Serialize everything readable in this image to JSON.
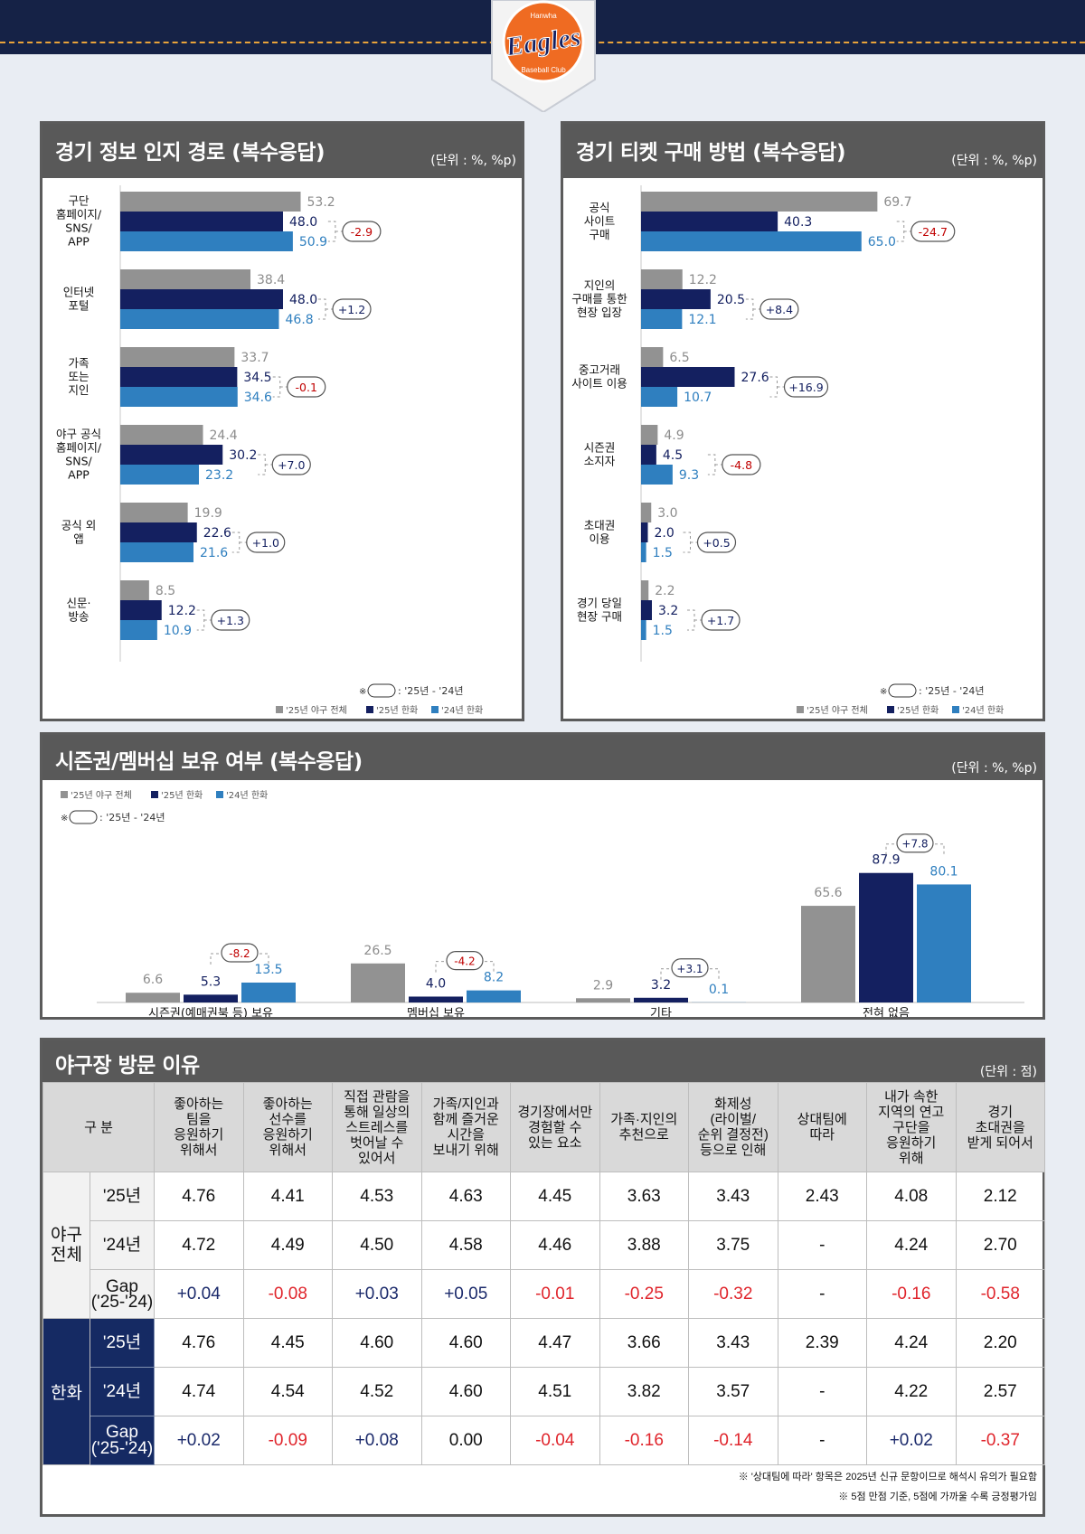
{
  "logo": {
    "top_text": "Hanwha",
    "main_text": "Eagles",
    "bottom_text": "Baseball Club"
  },
  "colors": {
    "gray": "#929292",
    "navy": "#142060",
    "blue": "#2f7fbf",
    "band": "#152246",
    "stitch": "#e9a33a",
    "red": "#c00000",
    "logo_orange": "#ef6b22"
  },
  "legend": {
    "labels": [
      "'25년 야구 전체",
      "'25년 한화",
      "'24년 한화"
    ],
    "gap_note_prefix": "※",
    "gap_note": ": '25년 - '24년"
  },
  "panel1": {
    "title": "경기 정보 인지 경로 (복수응답)",
    "unit": "(단위 : %, %p)"
  },
  "panel2": {
    "title": "경기 티켓 구매 방법 (복수응답)",
    "unit": "(단위 : %, %p)"
  },
  "panel3": {
    "title": "시즌권/멤버십 보유 여부 (복수응답)",
    "unit": "(단위 : %, %p)"
  },
  "chart_data": [
    {
      "type": "bar",
      "orientation": "horizontal",
      "title": "경기 정보 인지 경로 (복수응답)",
      "categories": [
        [
          "구단",
          "홈페이지/",
          "SNS/",
          "APP"
        ],
        [
          "인터넷",
          "포털"
        ],
        [
          "가족",
          "또는",
          "지인"
        ],
        [
          "야구 공식",
          "홈페이지/",
          "SNS/",
          "APP"
        ],
        [
          "공식 외",
          "앱"
        ],
        [
          "신문·",
          "방송"
        ]
      ],
      "series": [
        {
          "name": "'25년 야구 전체",
          "values": [
            53.2,
            38.4,
            33.7,
            24.4,
            19.9,
            8.5
          ]
        },
        {
          "name": "'25년 한화",
          "values": [
            48.0,
            48.0,
            34.5,
            30.2,
            22.6,
            12.2
          ]
        },
        {
          "name": "'24년 한화",
          "values": [
            50.9,
            46.8,
            34.6,
            23.2,
            21.6,
            10.9
          ]
        }
      ],
      "gaps": [
        "-2.9",
        "+1.2",
        "-0.1",
        "+7.0",
        "+1.0",
        "+1.3"
      ],
      "xlim": [
        0,
        100
      ]
    },
    {
      "type": "bar",
      "orientation": "horizontal",
      "title": "경기 티켓 구매 방법 (복수응답)",
      "categories": [
        [
          "공식",
          "사이트",
          "구매"
        ],
        [
          "지인의",
          "구매를 통한",
          "현장 입장"
        ],
        [
          "중고거래",
          "사이트 이용"
        ],
        [
          "시즌권",
          "소지자"
        ],
        [
          "초대권",
          "이용"
        ],
        [
          "경기 당일",
          "현장 구매"
        ]
      ],
      "series": [
        {
          "name": "'25년 야구 전체",
          "values": [
            69.7,
            12.2,
            6.5,
            4.9,
            3.0,
            2.2
          ]
        },
        {
          "name": "'25년 한화",
          "values": [
            40.3,
            20.5,
            27.6,
            4.5,
            2.0,
            3.2
          ]
        },
        {
          "name": "'24년 한화",
          "values": [
            65.0,
            12.1,
            10.7,
            9.3,
            1.5,
            1.5
          ]
        }
      ],
      "gaps": [
        "-24.7",
        "+8.4",
        "+16.9",
        "-4.8",
        "+0.5",
        "+1.7"
      ],
      "xlim": [
        0,
        100
      ]
    },
    {
      "type": "bar",
      "orientation": "vertical",
      "title": "시즌권/멤버십 보유 여부 (복수응답)",
      "categories": [
        "시즌권(예매권북 등) 보유",
        "멤버십 보유",
        "기타",
        "전혀 없음"
      ],
      "series": [
        {
          "name": "'25년 야구 전체",
          "values": [
            6.6,
            26.5,
            2.9,
            65.6
          ]
        },
        {
          "name": "'25년 한화",
          "values": [
            5.3,
            4.0,
            3.2,
            87.9
          ]
        },
        {
          "name": "'24년 한화",
          "values": [
            13.5,
            8.2,
            0.1,
            80.1
          ]
        }
      ],
      "gaps": [
        "-8.2",
        "-4.2",
        "+3.1",
        "+7.8"
      ],
      "ylim": [
        0,
        100
      ]
    }
  ],
  "table": {
    "title": "야구장 방문 이유",
    "unit": "(단위 : 점)",
    "corner": "구 분",
    "headers": [
      "좋아하는\n팀을\n응원하기\n위해서",
      "좋아하는\n선수를\n응원하기\n위해서",
      "직접 관람을\n통해 일상의\n스트레스를\n벗어날 수\n있어서",
      "가족/지인과\n함께 즐거운\n시간을\n보내기 위해",
      "경기장에서만\n경험할 수\n있는 요소",
      "가족·지인의\n추천으로",
      "화제성\n(라이벌/\n순위 결정전)\n등으로 인해",
      "상대팀에\n따라",
      "내가 속한\n지역의 연고\n구단을\n응원하기\n위해",
      "경기\n초대권을\n받게 되어서"
    ],
    "groups": [
      {
        "label": "야구\n전체",
        "rows": [
          {
            "label": "'25년",
            "values": [
              "4.76",
              "4.41",
              "4.53",
              "4.63",
              "4.45",
              "3.63",
              "3.43",
              "2.43",
              "4.08",
              "2.12"
            ]
          },
          {
            "label": "'24년",
            "values": [
              "4.72",
              "4.49",
              "4.50",
              "4.58",
              "4.46",
              "3.88",
              "3.75",
              "-",
              "4.24",
              "2.70"
            ]
          },
          {
            "label": "Gap\n('25-'24)",
            "values": [
              "+0.04",
              "-0.08",
              "+0.03",
              "+0.05",
              "-0.01",
              "-0.25",
              "-0.32",
              "-",
              "-0.16",
              "-0.58"
            ]
          }
        ]
      },
      {
        "label": "한화",
        "rows": [
          {
            "label": "'25년",
            "values": [
              "4.76",
              "4.45",
              "4.60",
              "4.60",
              "4.47",
              "3.66",
              "3.43",
              "2.39",
              "4.24",
              "2.20"
            ]
          },
          {
            "label": "'24년",
            "values": [
              "4.74",
              "4.54",
              "4.52",
              "4.60",
              "4.51",
              "3.82",
              "3.57",
              "-",
              "4.22",
              "2.57"
            ]
          },
          {
            "label": "Gap\n('25-'24)",
            "values": [
              "+0.02",
              "-0.09",
              "+0.08",
              "0.00",
              "-0.04",
              "-0.16",
              "-0.14",
              "-",
              "+0.02",
              "-0.37"
            ]
          }
        ]
      }
    ],
    "footnotes": [
      "※ '상대팀에 따라' 항목은 2025년 신규 문항이므로 해석시 유의가 필요함",
      "※ 5점 만점 기준, 5점에 가까울 수록 긍정평가임"
    ]
  }
}
